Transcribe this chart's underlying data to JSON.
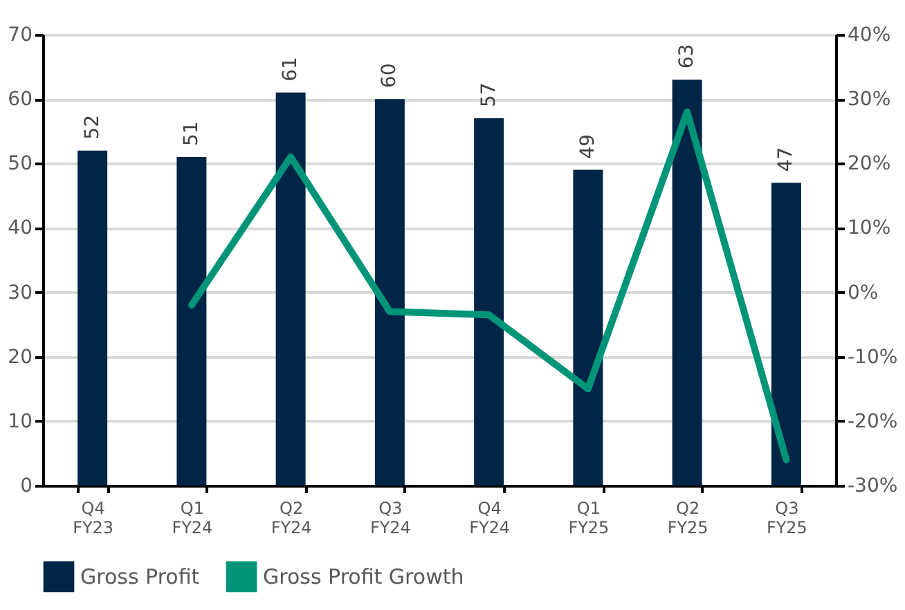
{
  "chart_data": {
    "type": "bar",
    "categories": [
      "Q4 FY23",
      "Q1 FY24",
      "Q2 FY24",
      "Q3 FY24",
      "Q4 FY24",
      "Q1 FY25",
      "Q2 FY25",
      "Q3 FY25"
    ],
    "series": [
      {
        "name": "Gross Profit",
        "color": "#002547",
        "values": [
          52,
          51,
          61,
          60,
          57,
          49,
          63,
          47
        ],
        "value_labels": [
          "52",
          "51",
          "61",
          "60",
          "57",
          "49",
          "63",
          "47"
        ]
      },
      {
        "name": "Gross Profit Growth",
        "type": "line",
        "axis": "y2",
        "color": "#009579",
        "line_style": "solid",
        "values": [
          null,
          -2,
          21,
          -3,
          -3.5,
          -15,
          28,
          -26
        ]
      }
    ],
    "ylim": [
      0,
      70
    ],
    "yticks": [
      0,
      10,
      20,
      30,
      40,
      50,
      60,
      70
    ],
    "y2lim": [
      -30,
      40
    ],
    "y2ticks": [
      {
        "value": -30,
        "label": "-30%"
      },
      {
        "value": -20,
        "label": "-20%"
      },
      {
        "value": -10,
        "label": "-10%"
      },
      {
        "value": 0,
        "label": "0%"
      },
      {
        "value": 10,
        "label": "10%"
      },
      {
        "value": 20,
        "label": "20%"
      },
      {
        "value": 30,
        "label": "30%"
      },
      {
        "value": 40,
        "label": "40%"
      }
    ],
    "grid": "y",
    "legend": "bottom",
    "marker": "none"
  }
}
